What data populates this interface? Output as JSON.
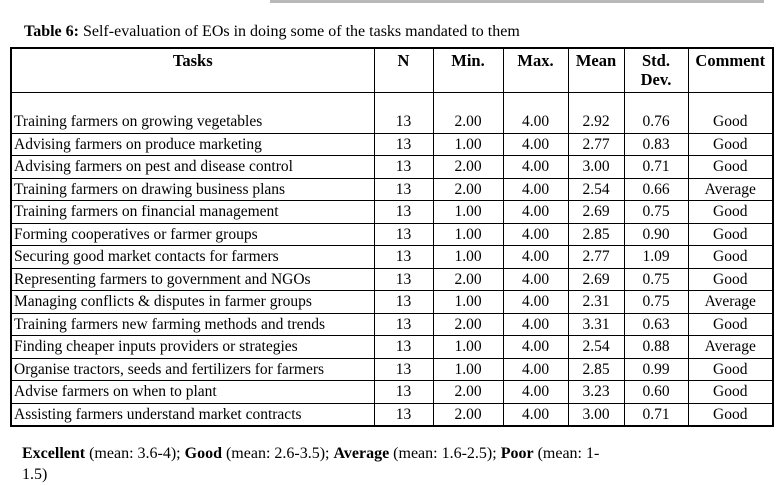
{
  "page": {
    "caption_prefix": "Table 6:",
    "caption_text": " Self-evaluation of EOs in doing some of the tasks mandated to them"
  },
  "table": {
    "columns": [
      "Tasks",
      "N",
      "Min.",
      "Max.",
      "Mean",
      "Std.\nDev.",
      "Comment"
    ],
    "column_keys": [
      "task",
      "n",
      "min",
      "max",
      "mean",
      "std_dev",
      "comment"
    ],
    "rows": [
      {
        "task": "Training farmers on growing vegetables",
        "n": "13",
        "min": "2.00",
        "max": "4.00",
        "mean": "2.92",
        "std_dev": "0.76",
        "comment": "Good"
      },
      {
        "task": "Advising farmers on produce marketing",
        "n": "13",
        "min": "1.00",
        "max": "4.00",
        "mean": "2.77",
        "std_dev": "0.83",
        "comment": "Good"
      },
      {
        "task": "Advising farmers on pest and disease control",
        "n": "13",
        "min": "2.00",
        "max": "4.00",
        "mean": "3.00",
        "std_dev": "0.71",
        "comment": "Good"
      },
      {
        "task": "Training farmers on drawing business plans",
        "n": "13",
        "min": "2.00",
        "max": "4.00",
        "mean": "2.54",
        "std_dev": "0.66",
        "comment": "Average"
      },
      {
        "task": "Training farmers on financial management",
        "n": "13",
        "min": "1.00",
        "max": "4.00",
        "mean": "2.69",
        "std_dev": "0.75",
        "comment": "Good"
      },
      {
        "task": "Forming cooperatives or farmer groups",
        "n": "13",
        "min": "1.00",
        "max": "4.00",
        "mean": "2.85",
        "std_dev": "0.90",
        "comment": "Good"
      },
      {
        "task": "Securing good market contacts for farmers",
        "n": "13",
        "min": "1.00",
        "max": "4.00",
        "mean": "2.77",
        "std_dev": "1.09",
        "comment": "Good"
      },
      {
        "task": "Representing farmers to government and NGOs",
        "n": "13",
        "min": "2.00",
        "max": "4.00",
        "mean": "2.69",
        "std_dev": "0.75",
        "comment": "Good"
      },
      {
        "task": "Managing conflicts & disputes in farmer groups",
        "n": "13",
        "min": "1.00",
        "max": "4.00",
        "mean": "2.31",
        "std_dev": "0.75",
        "comment": "Average"
      },
      {
        "task": "Training farmers new farming methods and trends",
        "n": "13",
        "min": "2.00",
        "max": "4.00",
        "mean": "3.31",
        "std_dev": "0.63",
        "comment": "Good"
      },
      {
        "task": "Finding cheaper inputs providers or strategies",
        "n": "13",
        "min": "1.00",
        "max": "4.00",
        "mean": "2.54",
        "std_dev": "0.88",
        "comment": "Average"
      },
      {
        "task": "Organise tractors, seeds and fertilizers for farmers",
        "n": "13",
        "min": "1.00",
        "max": "4.00",
        "mean": "2.85",
        "std_dev": "0.99",
        "comment": "Good"
      },
      {
        "task": "Advise farmers on when to plant",
        "n": "13",
        "min": "2.00",
        "max": "4.00",
        "mean": "3.23",
        "std_dev": "0.60",
        "comment": "Good"
      },
      {
        "task": "Assisting farmers understand market contracts",
        "n": "13",
        "min": "2.00",
        "max": "4.00",
        "mean": "3.00",
        "std_dev": "0.71",
        "comment": "Good"
      }
    ]
  },
  "legend": {
    "line1": [
      {
        "label": "Excellent",
        "desc": " (mean: 3.6-4); "
      },
      {
        "label": "Good",
        "desc": " (mean: 2.6-3.5); "
      },
      {
        "label": "Average",
        "desc": " (mean: 1.6-2.5); "
      },
      {
        "label": "Poor",
        "desc": " (mean: 1-"
      }
    ],
    "line2": "1.5)"
  }
}
